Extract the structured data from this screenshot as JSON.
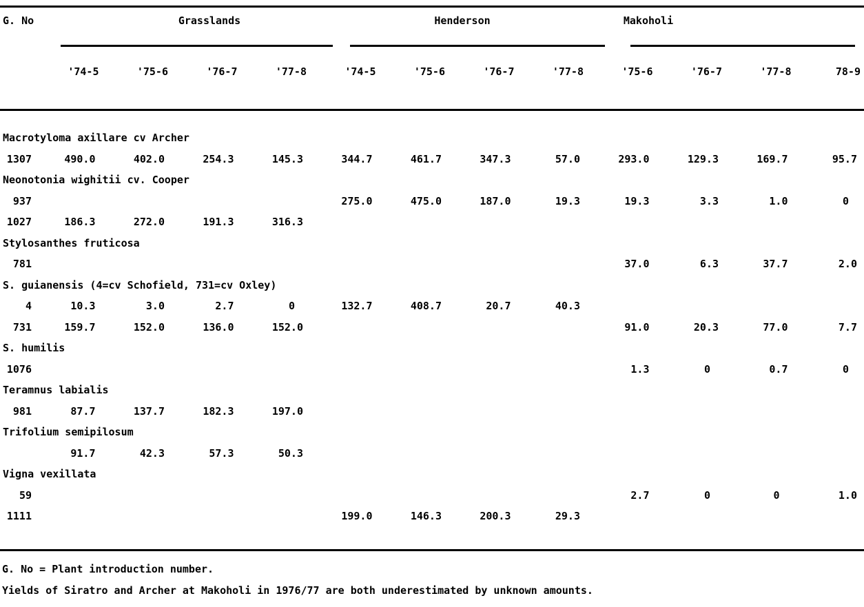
{
  "colors": {
    "ink": "#000000",
    "paper": "#ffffff"
  },
  "table": {
    "corner_label": "G. No",
    "groups": [
      {
        "label": "Grasslands",
        "years": [
          "'74-5",
          "'75-6",
          "'76-7",
          "'77-8"
        ]
      },
      {
        "label": "Henderson",
        "years": [
          "'74-5",
          "'75-6",
          "'76-7",
          "'77-8"
        ]
      },
      {
        "label": "Makoholi",
        "years": [
          "'75-6",
          "'76-7",
          "'77-8",
          "78-9"
        ]
      }
    ],
    "rows": [
      {
        "type": "species",
        "label": "Macrotyloma axillare cv Archer"
      },
      {
        "type": "data",
        "gno": "1307",
        "values": [
          "490.0",
          "402.0",
          "254.3",
          "145.3",
          "344.7",
          "461.7",
          "347.3",
          "57.0",
          "293.0",
          "129.3",
          "169.7",
          "95.7"
        ]
      },
      {
        "type": "species",
        "label": "Neonotonia wighitii cv. Cooper"
      },
      {
        "type": "data",
        "gno": "937",
        "values": [
          "",
          "",
          "",
          "",
          "275.0",
          "475.0",
          "187.0",
          "19.3",
          "19.3",
          "3.3",
          "1.0",
          "0"
        ]
      },
      {
        "type": "data",
        "gno": "1027",
        "values": [
          "186.3",
          "272.0",
          "191.3",
          "316.3",
          "",
          "",
          "",
          "",
          "",
          "",
          "",
          ""
        ]
      },
      {
        "type": "species",
        "label": "Stylosanthes fruticosa"
      },
      {
        "type": "data",
        "gno": "781",
        "values": [
          "",
          "",
          "",
          "",
          "",
          "",
          "",
          "",
          "37.0",
          "6.3",
          "37.7",
          "2.0"
        ]
      },
      {
        "type": "species",
        "label": "S. guianensis (4=cv Schofield, 731=cv Oxley)"
      },
      {
        "type": "data",
        "gno": "4",
        "values": [
          "10.3",
          "3.0",
          "2.7",
          "0",
          "132.7",
          "408.7",
          "20.7",
          "40.3",
          "",
          "",
          "",
          ""
        ]
      },
      {
        "type": "data",
        "gno": "731",
        "values": [
          "159.7",
          "152.0",
          "136.0",
          "152.0",
          "",
          "",
          "",
          "",
          "91.0",
          "20.3",
          "77.0",
          "7.7"
        ]
      },
      {
        "type": "species",
        "label": "S. humilis"
      },
      {
        "type": "data",
        "gno": "1076",
        "values": [
          "",
          "",
          "",
          "",
          "",
          "",
          "",
          "",
          "1.3",
          "0",
          "0.7",
          "0"
        ]
      },
      {
        "type": "species",
        "label": "Teramnus labialis"
      },
      {
        "type": "data",
        "gno": "981",
        "values": [
          "87.7",
          "137.7",
          "182.3",
          "197.0",
          "",
          "",
          "",
          "",
          "",
          "",
          "",
          ""
        ]
      },
      {
        "type": "species",
        "label": "Trifolium semipilosum"
      },
      {
        "type": "data",
        "gno": "",
        "values": [
          "91.7",
          "42.3",
          "57.3",
          "50.3",
          "",
          "",
          "",
          "",
          "",
          "",
          "",
          ""
        ]
      },
      {
        "type": "species",
        "label": "Vigna vexillata"
      },
      {
        "type": "data",
        "gno": "59",
        "values": [
          "",
          "",
          "",
          "",
          "",
          "",
          "",
          "",
          "2.7",
          "0",
          "0",
          "1.0"
        ]
      },
      {
        "type": "data",
        "gno": "1111",
        "values": [
          "",
          "",
          "",
          "",
          "199.0",
          "146.3",
          "200.3",
          "29.3",
          "",
          "",
          "",
          ""
        ]
      }
    ],
    "footnotes": [
      "G. No = Plant introduction number.",
      "Yields of Siratro and Archer at Makoholi in 1976/77 are both underestimated by unknown amounts."
    ]
  }
}
